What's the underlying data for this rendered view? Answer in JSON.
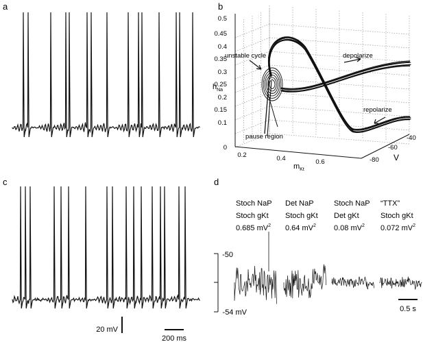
{
  "chart_data": [
    {
      "panel": "a",
      "type": "line",
      "description": "membrane potential trace, regular spiking with subthreshold oscillations"
    },
    {
      "panel": "b",
      "type": "line",
      "axes": {
        "x_label": "m",
        "x_sub": "Kt",
        "x_ticks": [
          "0.2",
          "0.4",
          "0.6"
        ],
        "y_label": "h",
        "y_sub": "Na",
        "y_ticks": [
          "0",
          "0.1",
          "0.15",
          "0.2",
          "0.25",
          "0.3",
          "0.35",
          "0.4",
          "0.45",
          "0.5"
        ],
        "z_label": "V",
        "z_ticks": [
          "-40",
          "-60",
          "-80"
        ]
      },
      "annotations": [
        "unstable cycle",
        "depolarize",
        "repolarize",
        "pause region"
      ]
    },
    {
      "panel": "c",
      "type": "line",
      "scalebars": {
        "voltage": "20 mV",
        "time": "200 ms"
      }
    },
    {
      "panel": "d",
      "type": "line",
      "conditions": [
        {
          "line1": "Stoch NaP",
          "line2": "Stoch gKt",
          "variance": "0.685 mV",
          "sup": "2"
        },
        {
          "line1": "Det NaP",
          "line2": "Stoch gKt",
          "variance": "0.64 mV",
          "sup": "2"
        },
        {
          "line1": "Stoch NaP",
          "line2": "Det gKt",
          "variance": "0.08 mV",
          "sup": "2"
        },
        {
          "line1": "“TTX”",
          "line2": "Stoch gKt",
          "variance": "0.072 mV",
          "sup": "2"
        }
      ],
      "y_ticks": [
        "-50",
        "-54 mV"
      ],
      "scalebar": "0.5 s"
    }
  ],
  "labels": {
    "a": "a",
    "b": "b",
    "c": "c",
    "d": "d"
  }
}
